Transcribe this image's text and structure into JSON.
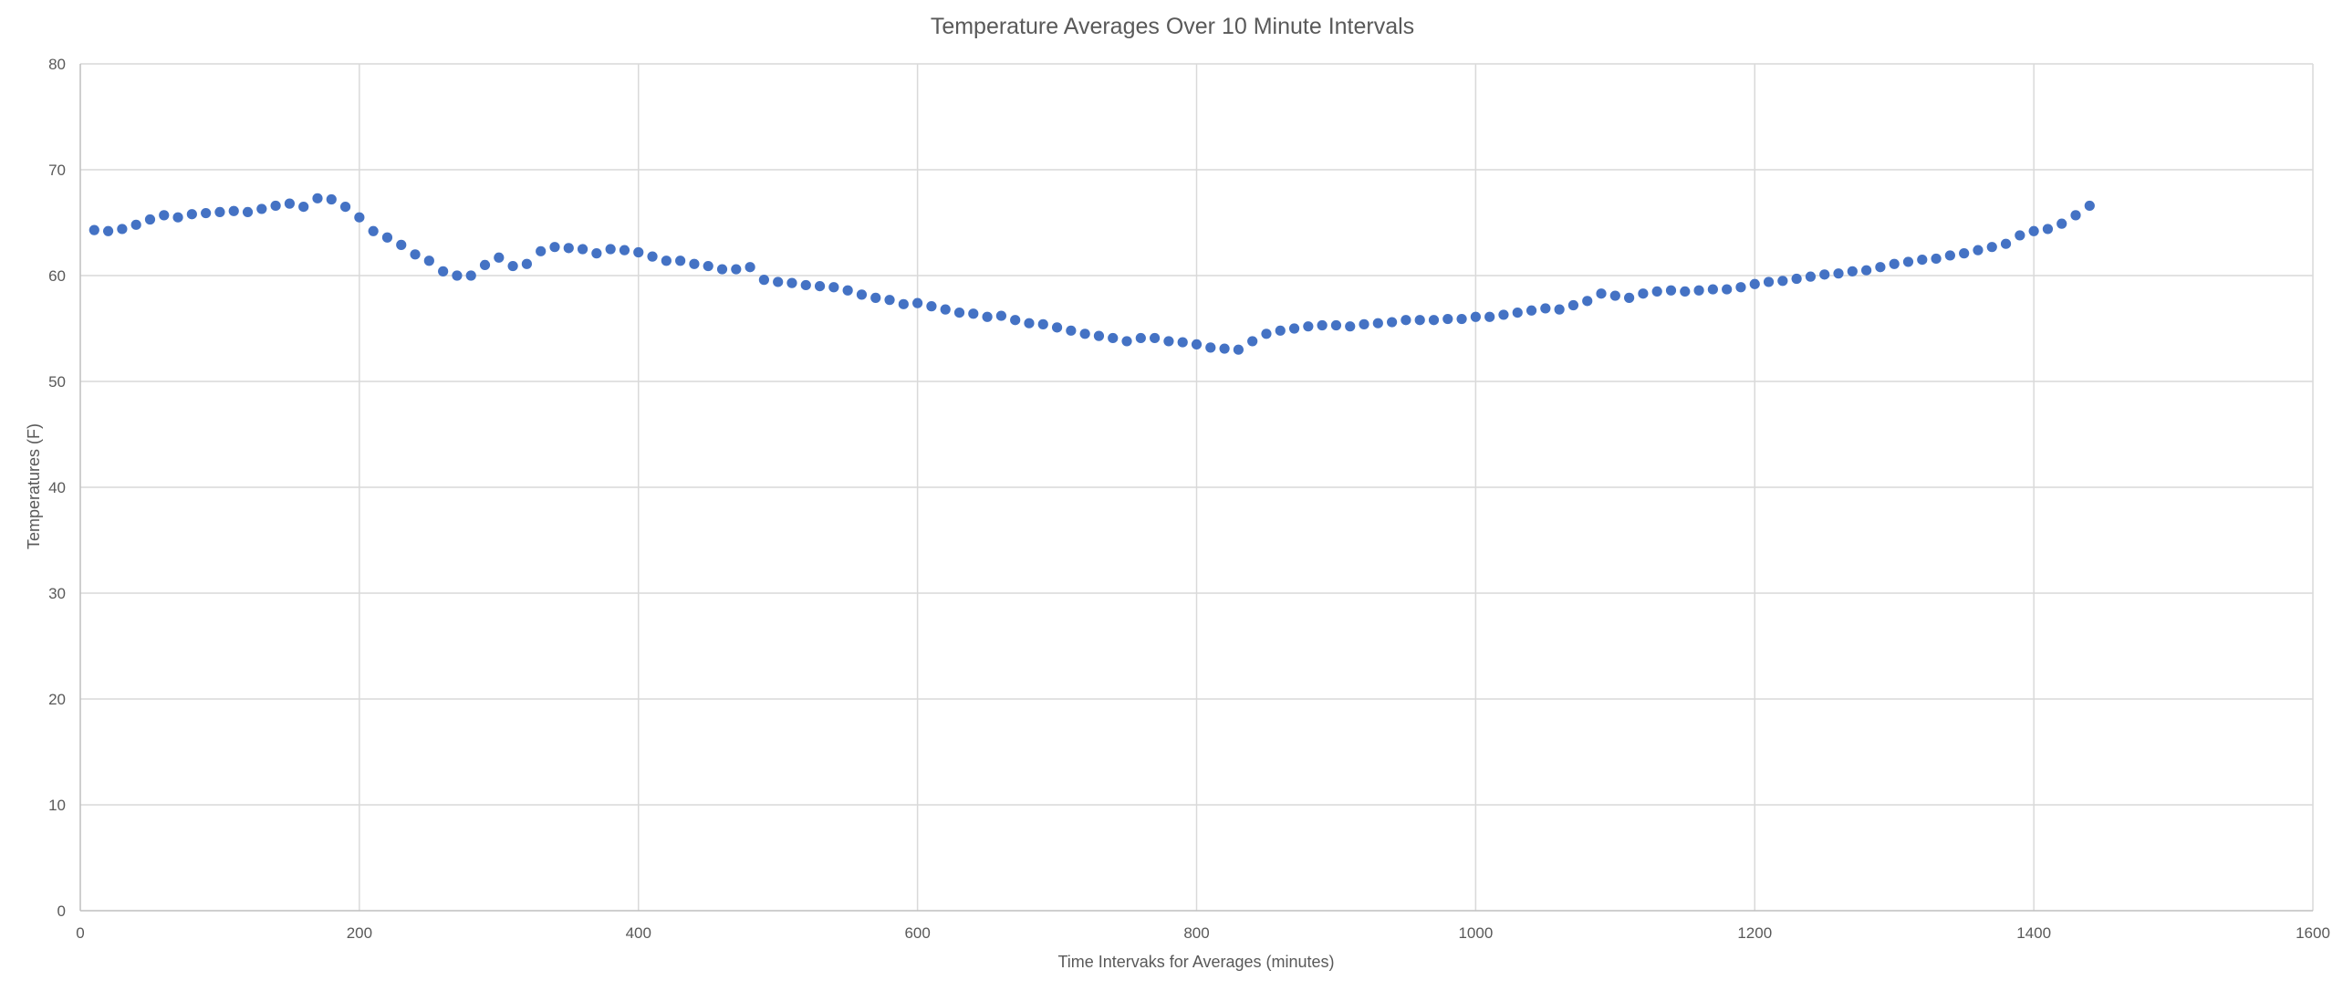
{
  "chart_data": {
    "type": "scatter",
    "title": "Temperature Averages Over 10 Minute Intervals",
    "xlabel": "Time Intervaks for Averages (minutes)",
    "ylabel": "Temperatures (F)",
    "xlim": [
      0,
      1600
    ],
    "ylim": [
      0,
      80
    ],
    "xticks": [
      0,
      200,
      400,
      600,
      800,
      1000,
      1200,
      1400,
      1600
    ],
    "yticks": [
      0,
      10,
      20,
      30,
      40,
      50,
      60,
      70,
      80
    ],
    "grid": true,
    "legend": "none",
    "marker_color": "#4472C4",
    "series": [
      {
        "x": [
          10,
          20,
          30,
          40,
          50,
          60,
          70,
          80,
          90,
          100,
          110,
          120,
          130,
          140,
          150,
          160,
          170,
          180,
          190,
          200,
          210,
          220,
          230,
          240,
          250,
          260,
          270,
          280,
          290,
          300,
          310,
          320,
          330,
          340,
          350,
          360,
          370,
          380,
          390,
          400,
          410,
          420,
          430,
          440,
          450,
          460,
          470,
          480,
          490,
          500,
          510,
          520,
          530,
          540,
          550,
          560,
          570,
          580,
          590,
          600,
          610,
          620,
          630,
          640,
          650,
          660,
          670,
          680,
          690,
          700,
          710,
          720,
          730,
          740,
          750,
          760,
          770,
          780,
          790,
          800,
          810,
          820,
          830,
          840,
          850,
          860,
          870,
          880,
          890,
          900,
          910,
          920,
          930,
          940,
          950,
          960,
          970,
          980,
          990,
          1000,
          1010,
          1020,
          1030,
          1040,
          1050,
          1060,
          1070,
          1080,
          1090,
          1100,
          1110,
          1120,
          1130,
          1140,
          1150,
          1160,
          1170,
          1180,
          1190,
          1200,
          1210,
          1220,
          1230,
          1240,
          1250,
          1260,
          1270,
          1280,
          1290,
          1300,
          1310,
          1320,
          1330,
          1340,
          1350,
          1360,
          1370,
          1380,
          1390,
          1400,
          1410,
          1420,
          1430,
          1440
        ],
        "y": [
          64.3,
          64.2,
          64.4,
          64.8,
          65.3,
          65.7,
          65.5,
          65.8,
          65.9,
          66.0,
          66.1,
          66.0,
          66.3,
          66.6,
          66.8,
          66.5,
          67.3,
          67.2,
          66.5,
          65.5,
          64.2,
          63.6,
          62.9,
          62.0,
          61.4,
          60.4,
          60.0,
          60.0,
          61.0,
          61.7,
          60.9,
          61.1,
          62.3,
          62.7,
          62.6,
          62.5,
          62.1,
          62.5,
          62.4,
          62.2,
          61.8,
          61.4,
          61.4,
          61.1,
          60.9,
          60.6,
          60.6,
          60.8,
          59.6,
          59.4,
          59.3,
          59.1,
          59.0,
          58.9,
          58.6,
          58.2,
          57.9,
          57.7,
          57.3,
          57.4,
          57.1,
          56.8,
          56.5,
          56.4,
          56.1,
          56.2,
          55.8,
          55.5,
          55.4,
          55.1,
          54.8,
          54.5,
          54.3,
          54.1,
          53.8,
          54.1,
          54.1,
          53.8,
          53.7,
          53.5,
          53.2,
          53.1,
          53.0,
          53.8,
          54.5,
          54.8,
          55.0,
          55.2,
          55.3,
          55.3,
          55.2,
          55.4,
          55.5,
          55.6,
          55.8,
          55.8,
          55.8,
          55.9,
          55.9,
          56.1,
          56.1,
          56.3,
          56.5,
          56.7,
          56.9,
          56.8,
          57.2,
          57.6,
          58.3,
          58.1,
          57.9,
          58.3,
          58.5,
          58.6,
          58.5,
          58.6,
          58.7,
          58.7,
          58.9,
          59.2,
          59.4,
          59.5,
          59.7,
          59.9,
          60.1,
          60.2,
          60.4,
          60.5,
          60.8,
          61.1,
          61.3,
          61.5,
          61.6,
          61.9,
          62.1,
          62.4,
          62.7,
          63.0,
          63.8,
          64.2,
          64.4,
          64.9,
          65.7,
          66.6
        ]
      }
    ]
  }
}
